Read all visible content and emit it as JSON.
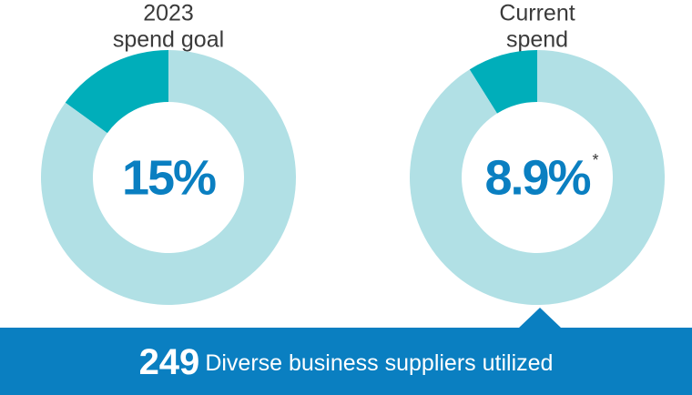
{
  "chart_data": [
    {
      "type": "donut",
      "title": [
        "2023",
        "spend goal"
      ],
      "categories": [
        null,
        null
      ],
      "values": [
        15,
        85
      ],
      "value_labels": [
        "15%",
        null
      ],
      "colors": [
        "#00aeba",
        "#b1e0e5"
      ]
    },
    {
      "type": "donut",
      "title": [
        "Current",
        "spend"
      ],
      "categories": [
        null,
        null
      ],
      "values": [
        8.9,
        91.1
      ],
      "value_labels": [
        "8.9%",
        null
      ],
      "colors": [
        "#00aeba",
        "#b1e0e5"
      ],
      "note_marker": "*"
    }
  ],
  "banner": {
    "number": "249",
    "text": "Diverse business suppliers utilized"
  }
}
